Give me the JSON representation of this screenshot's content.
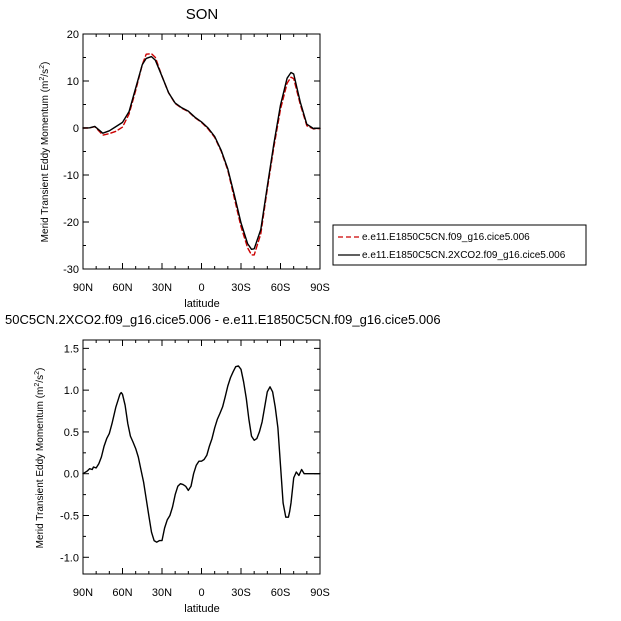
{
  "chart_data": [
    {
      "type": "line",
      "title": "SON",
      "xlabel": "latitude",
      "ylabel": "Merid Transient Eddy Momentum (m",
      "ylabel_units_sup": "2",
      "ylabel_units_mid": "/s",
      "ylabel_units_end": ")",
      "x_direction": "north-to-south",
      "xlim": [
        90,
        -90
      ],
      "ylim": [
        -30,
        20
      ],
      "xticks": [
        90,
        60,
        30,
        0,
        -30,
        -60,
        -90
      ],
      "xtick_labels": [
        "90N",
        "60N",
        "30N",
        "0",
        "30S",
        "60S",
        "90S"
      ],
      "yticks": [
        -30,
        -20,
        -10,
        0,
        10,
        20
      ],
      "ytick_labels": [
        "-30",
        "-20",
        "-10",
        "0",
        "10",
        "20"
      ],
      "legend_placement": "outside-right",
      "series": [
        {
          "name": "e.e11.E1850C5CN.f09_g16.cice5.006",
          "color": "#cc0000",
          "dash": "dashed",
          "x": [
            90,
            85,
            81,
            75,
            70,
            65,
            60,
            55,
            50,
            45,
            42,
            38,
            35,
            30,
            25,
            20,
            15,
            10,
            5,
            0,
            -5,
            -10,
            -15,
            -20,
            -25,
            -30,
            -35,
            -38,
            -40,
            -45,
            -50,
            -55,
            -60,
            -65,
            -68,
            -70,
            -75,
            -80,
            -85,
            -90
          ],
          "y": [
            0,
            0,
            0.3,
            -1.5,
            -1.2,
            -0.7,
            0.2,
            3,
            8,
            13.5,
            15.7,
            15.8,
            15,
            11,
            7.5,
            5.2,
            4.2,
            3.5,
            2.2,
            1.2,
            -0.2,
            -2,
            -5,
            -9,
            -15,
            -21,
            -25.5,
            -27,
            -27,
            -22.5,
            -13,
            -4,
            4,
            9.5,
            10.8,
            10.5,
            5,
            0.5,
            -0.2,
            -0.1
          ]
        },
        {
          "name": "e.e11.E1850C5CN.2XCO2.f09_g16.cice5.006",
          "color": "#000000",
          "dash": "solid",
          "x": [
            90,
            85,
            81,
            75,
            70,
            65,
            60,
            55,
            50,
            45,
            42,
            38,
            35,
            30,
            25,
            20,
            15,
            10,
            5,
            0,
            -5,
            -10,
            -15,
            -20,
            -25,
            -30,
            -35,
            -38,
            -40,
            -45,
            -50,
            -55,
            -60,
            -65,
            -68,
            -70,
            -75,
            -80,
            -85,
            -90
          ],
          "y": [
            0,
            0.05,
            0.35,
            -1.1,
            -0.6,
            0.3,
            1.2,
            3.5,
            8.5,
            13.5,
            14.8,
            15.2,
            14.4,
            11,
            7.5,
            5.3,
            4.3,
            3.6,
            2.3,
            1.3,
            0,
            -1.8,
            -4.8,
            -8.7,
            -14.3,
            -20.2,
            -24.6,
            -25.8,
            -25.7,
            -21.6,
            -12.4,
            -3.3,
            4.9,
            10.6,
            11.8,
            11.5,
            5.5,
            0.8,
            -0.1,
            -0.05
          ]
        }
      ]
    },
    {
      "type": "line",
      "title": "50C5CN.2XCO2.f09_g16.cice5.006 - e.e11.E1850C5CN.f09_g16.cice5.006",
      "xlabel": "latitude",
      "ylabel": "Merid Transient Eddy Momentum (m",
      "ylabel_units_sup": "2",
      "ylabel_units_mid": "/s",
      "ylabel_units_end": ")",
      "x_direction": "north-to-south",
      "xlim": [
        90,
        -90
      ],
      "ylim": [
        -1.2,
        1.6
      ],
      "xticks": [
        90,
        60,
        30,
        0,
        -30,
        -60,
        -90
      ],
      "xtick_labels": [
        "90N",
        "60N",
        "30N",
        "0",
        "30S",
        "60S",
        "90S"
      ],
      "yticks": [
        -1.0,
        -0.5,
        0.0,
        0.5,
        1.0,
        1.5
      ],
      "ytick_labels": [
        "-1.0",
        "-0.5",
        "0.0",
        "0.5",
        "1.0",
        "1.5"
      ],
      "series": [
        {
          "color": "#000000",
          "dash": "solid",
          "x": [
            90,
            87,
            85,
            83,
            82,
            80,
            78,
            76,
            74,
            72,
            70,
            68,
            65,
            62,
            61,
            60,
            58,
            56,
            54,
            52,
            50,
            48,
            46,
            44,
            42,
            40,
            38,
            36,
            34,
            32,
            30,
            28,
            26,
            24,
            22,
            20,
            18,
            16,
            14,
            12,
            10,
            8,
            6,
            4,
            2,
            0,
            -2,
            -4,
            -6,
            -8,
            -10,
            -12,
            -14,
            -16,
            -18,
            -20,
            -22,
            -24,
            -26,
            -28,
            -30,
            -32,
            -34,
            -36,
            -38,
            -40,
            -42,
            -44,
            -46,
            -48,
            -50,
            -52,
            -54,
            -56,
            -58,
            -60,
            -62,
            -64,
            -66,
            -67,
            -68,
            -70,
            -72,
            -74,
            -76,
            -78,
            -80,
            -82,
            -84,
            -86,
            -88,
            -90
          ],
          "y": [
            0.0,
            0.03,
            0.06,
            0.05,
            0.08,
            0.07,
            0.12,
            0.2,
            0.33,
            0.42,
            0.48,
            0.6,
            0.8,
            0.95,
            0.97,
            0.95,
            0.82,
            0.6,
            0.45,
            0.38,
            0.3,
            0.2,
            0.05,
            -0.1,
            -0.3,
            -0.5,
            -0.7,
            -0.8,
            -0.82,
            -0.8,
            -0.8,
            -0.65,
            -0.55,
            -0.5,
            -0.4,
            -0.25,
            -0.15,
            -0.12,
            -0.13,
            -0.15,
            -0.2,
            -0.15,
            0.0,
            0.1,
            0.15,
            0.15,
            0.17,
            0.22,
            0.33,
            0.42,
            0.55,
            0.65,
            0.72,
            0.8,
            0.92,
            1.05,
            1.15,
            1.22,
            1.28,
            1.29,
            1.25,
            1.1,
            0.9,
            0.65,
            0.45,
            0.4,
            0.42,
            0.5,
            0.62,
            0.8,
            0.98,
            1.04,
            0.98,
            0.8,
            0.55,
            0.1,
            -0.35,
            -0.52,
            -0.52,
            -0.45,
            -0.35,
            -0.05,
            0.02,
            -0.02,
            0.05,
            0.0,
            0.0,
            0.0,
            0.0,
            0.0,
            0.0,
            0.0
          ]
        }
      ]
    }
  ]
}
